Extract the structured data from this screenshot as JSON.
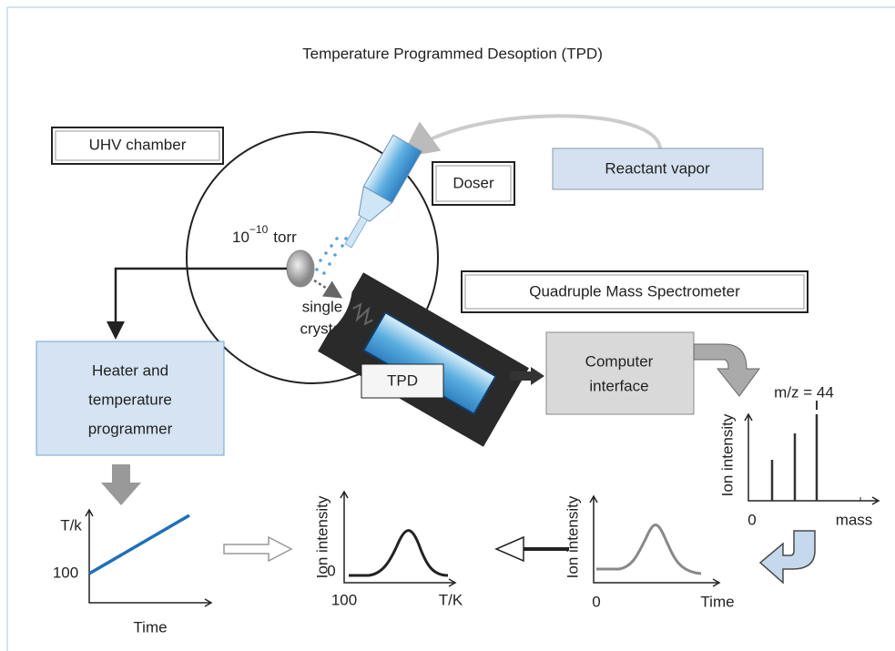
{
  "title": "Temperature Programmed Desoption (TPD)",
  "nodes": {
    "uhv_chamber": {
      "label": "UHV chamber"
    },
    "doser": {
      "label": "Doser"
    },
    "reactant_vapor": {
      "label": "Reactant vapor"
    },
    "pressure": {
      "base": "10",
      "exponent": "−10",
      "unit": "torr"
    },
    "crystal": {
      "lines": [
        "single",
        "crystal"
      ]
    },
    "mass_spectrometer": {
      "label": "Quadruple Mass Spectrometer"
    },
    "computer": {
      "lines": [
        "Computer",
        "interface"
      ]
    },
    "heater": {
      "lines": [
        "Heater and",
        "temperature",
        "programmer"
      ]
    },
    "tpd": {
      "label": "TPD"
    }
  },
  "plots": {
    "mass_spectrum": {
      "annotation": "m/z = 44",
      "y_label": "Ion intensity",
      "x_origin": "0",
      "x_label": "mass"
    },
    "temperature": {
      "y_label": "T/k",
      "y_start": "100",
      "x_label": "Time"
    },
    "tpd": {
      "y_label": "Ion intensity",
      "y_origin": "0",
      "x_start": "100",
      "x_label": "T/K"
    },
    "time_trace": {
      "y_label": "Ion intensity",
      "x_origin": "0",
      "x_label": "Time"
    }
  }
}
